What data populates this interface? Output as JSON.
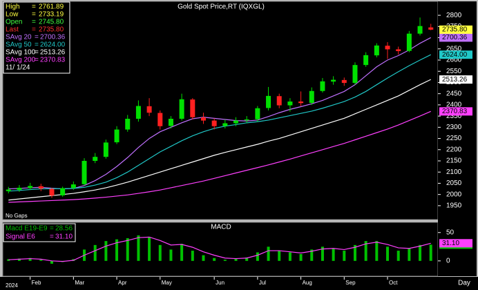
{
  "chart_data": [
    {
      "type": "candlestick",
      "title": "Gold Spot Price,RT (IQXGL)",
      "note": "No Gaps",
      "legend_separator": "=",
      "date": "11/ 1/24",
      "quote": [
        {
          "label": "High",
          "value": 2761.89,
          "value_label": "2761.89",
          "color": "#ffff40"
        },
        {
          "label": "Low",
          "value": 2733.19,
          "value_label": "2733.19",
          "color": "#ffff40"
        },
        {
          "label": "Open",
          "value": 2745.8,
          "value_label": "2745.80",
          "color": "#40ff40"
        },
        {
          "label": "Last",
          "value": 2735.8,
          "value_label": "2735.80",
          "color": "#ff3030"
        }
      ],
      "close_label": "2735.80",
      "close_color": "#ffff40",
      "up_color": "#00e000",
      "down_color": "#ff2020",
      "open": [
        2015,
        2021,
        2029,
        2037,
        2025,
        1996,
        2029,
        2046,
        2150,
        2168,
        2233,
        2290,
        2338,
        2394,
        2364,
        2306,
        2338,
        2424,
        2344,
        2330,
        2306,
        2318,
        2331,
        2336,
        2386,
        2439,
        2398,
        2415,
        2409,
        2462,
        2504,
        2511,
        2498,
        2578,
        2621,
        2664,
        2648,
        2641,
        2718,
        2745.8
      ],
      "high": [
        2034,
        2042,
        2052,
        2048,
        2030,
        2035,
        2058,
        2162,
        2185,
        2245,
        2305,
        2355,
        2420,
        2430,
        2375,
        2350,
        2450,
        2430,
        2365,
        2340,
        2335,
        2345,
        2350,
        2395,
        2480,
        2450,
        2430,
        2460,
        2478,
        2520,
        2528,
        2522,
        2590,
        2635,
        2675,
        2680,
        2660,
        2730,
        2790,
        2761.89
      ],
      "low": [
        2005,
        2012,
        2020,
        2015,
        1985,
        1990,
        2020,
        2040,
        2140,
        2160,
        2225,
        2280,
        2325,
        2350,
        2290,
        2295,
        2330,
        2335,
        2315,
        2290,
        2295,
        2305,
        2320,
        2325,
        2375,
        2385,
        2370,
        2395,
        2400,
        2455,
        2490,
        2485,
        2490,
        2570,
        2612,
        2605,
        2625,
        2635,
        2710,
        2733.19
      ],
      "close": [
        2022,
        2030,
        2038,
        2026,
        1995,
        2028,
        2045,
        2150,
        2168,
        2232,
        2290,
        2338,
        2395,
        2365,
        2305,
        2338,
        2425,
        2345,
        2330,
        2305,
        2318,
        2330,
        2335,
        2385,
        2440,
        2398,
        2415,
        2408,
        2462,
        2505,
        2512,
        2498,
        2578,
        2622,
        2665,
        2648,
        2640,
        2718,
        2752,
        2735.8
      ],
      "series": [
        {
          "name": "SAvg 20",
          "color": "#c070ff",
          "last_label": "2700.36",
          "values": [
            2025,
            2027,
            2030,
            2032,
            2028,
            2025,
            2027,
            2040,
            2062,
            2090,
            2125,
            2165,
            2210,
            2250,
            2280,
            2300,
            2320,
            2338,
            2345,
            2340,
            2335,
            2330,
            2328,
            2332,
            2348,
            2365,
            2380,
            2392,
            2405,
            2420,
            2440,
            2460,
            2490,
            2530,
            2570,
            2600,
            2620,
            2645,
            2675,
            2700.36
          ]
        },
        {
          "name": "SAvg 50",
          "color": "#20c8c8",
          "last_label": "2624.00",
          "values": [
            2015,
            2018,
            2022,
            2025,
            2026,
            2026,
            2027,
            2032,
            2042,
            2055,
            2075,
            2100,
            2130,
            2160,
            2190,
            2215,
            2240,
            2262,
            2280,
            2295,
            2305,
            2312,
            2320,
            2325,
            2332,
            2342,
            2352,
            2362,
            2372,
            2385,
            2400,
            2415,
            2435,
            2460,
            2490,
            2520,
            2548,
            2575,
            2600,
            2624
          ]
        },
        {
          "name": "SAvg 100",
          "color": "#ffffff",
          "last_label": "2513.26",
          "values": [
            1975,
            1980,
            1985,
            1990,
            1995,
            2000,
            2005,
            2012,
            2020,
            2030,
            2042,
            2055,
            2070,
            2085,
            2100,
            2115,
            2130,
            2145,
            2160,
            2175,
            2188,
            2200,
            2212,
            2224,
            2238,
            2250,
            2265,
            2280,
            2295,
            2310,
            2325,
            2340,
            2360,
            2380,
            2400,
            2420,
            2440,
            2465,
            2490,
            2513.26
          ]
        },
        {
          "name": "SAvg 200",
          "color": "#ff40ff",
          "last_label": "2370.83",
          "values": [
            1965,
            1967,
            1969,
            1971,
            1973,
            1975,
            1977,
            1980,
            1984,
            1988,
            1993,
            1998,
            2005,
            2012,
            2020,
            2030,
            2040,
            2050,
            2060,
            2072,
            2084,
            2096,
            2108,
            2120,
            2132,
            2145,
            2158,
            2172,
            2186,
            2200,
            2214,
            2228,
            2244,
            2260,
            2276,
            2292,
            2310,
            2330,
            2350,
            2370.83
          ]
        }
      ],
      "ylim": [
        1888,
        2862
      ],
      "yticks": [
        1950,
        2000,
        2050,
        2100,
        2150,
        2200,
        2250,
        2300,
        2350,
        2400,
        2450,
        2500,
        2550,
        2600,
        2650,
        2700,
        2750,
        2800
      ],
      "xlim": [
        -0.4,
        39.4
      ],
      "xticks": [
        {
          "value": 2,
          "label": "Feb"
        },
        {
          "value": 6,
          "label": "Mar"
        },
        {
          "value": 10,
          "label": "Apr"
        },
        {
          "value": 14,
          "label": "May"
        },
        {
          "value": 19,
          "label": "Jun"
        },
        {
          "value": 23,
          "label": "Jul"
        },
        {
          "value": 27,
          "label": "Aug"
        },
        {
          "value": 31,
          "label": "Sep"
        },
        {
          "value": 35,
          "label": "Oct"
        }
      ],
      "year": "2024",
      "period": "Day"
    },
    {
      "type": "macd",
      "title": "MACD",
      "series": [
        {
          "name": "Macd E19-E9",
          "color": "#00c000",
          "last_label": "28.56",
          "values": [
            3,
            4,
            5,
            2,
            -5,
            -2,
            3,
            20,
            28,
            35,
            38,
            40,
            45,
            42,
            28,
            20,
            30,
            18,
            10,
            5,
            2,
            4,
            6,
            15,
            25,
            18,
            15,
            12,
            20,
            25,
            22,
            18,
            28,
            35,
            35,
            25,
            18,
            22,
            28,
            28.56
          ]
        },
        {
          "name": "Signal E6",
          "color": "#ff40ff",
          "last_label": "31.10",
          "values": [
            2,
            3,
            4,
            3,
            0,
            -1,
            1,
            10,
            18,
            26,
            32,
            36,
            41,
            42,
            36,
            28,
            29,
            24,
            16,
            10,
            5,
            4,
            5,
            10,
            18,
            18,
            16,
            14,
            17,
            21,
            22,
            20,
            24,
            30,
            33,
            29,
            23,
            22,
            26,
            31.1
          ]
        }
      ],
      "ylim": [
        -27,
        68
      ],
      "yticks": [
        0,
        50
      ]
    }
  ]
}
